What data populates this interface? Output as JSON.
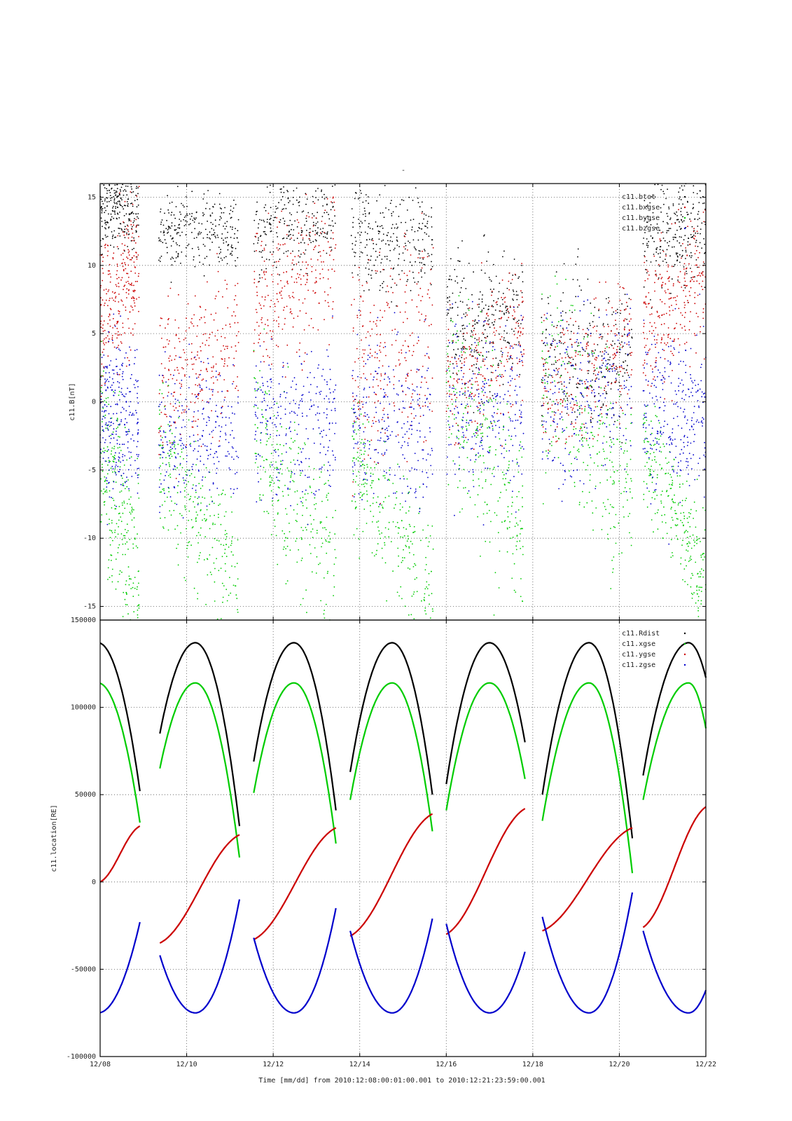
{
  "page": {
    "top_mark": "-",
    "xlabel": "Time [mm/dd]  from 2010:12:08:00:01:00.001  to  2010:12:21:23:59:00.001"
  },
  "chart_data": [
    {
      "type": "scatter",
      "ylabel": "c11.B[nT]",
      "ylim": [
        -16,
        16
      ],
      "xlim": [
        0,
        14
      ],
      "x_unit": "days from 2010-12-08",
      "xtick_labels": [
        "12/08",
        "12/10",
        "12/12",
        "12/14",
        "12/16",
        "12/18",
        "12/20",
        "12/22"
      ],
      "xtick_values": [
        0,
        2,
        4,
        6,
        8,
        10,
        12,
        14
      ],
      "ytick_values": [
        -15,
        -10,
        -5,
        0,
        5,
        10,
        15
      ],
      "ytick_labels": [
        "-15",
        "-10",
        "-5",
        "0",
        "5",
        "10",
        "15"
      ],
      "grid": true,
      "legend_placement": "top-right",
      "series": [
        {
          "name": "c11.btot",
          "color": "#000000",
          "mean": [
            14.2,
            2.8,
            12.5,
            2.5,
            13.5,
            3.5,
            11.8,
            3.5,
            6.0,
            5.0,
            3.5,
            5.0,
            12.8,
            4.2,
            13.5,
            2.6,
            10.5,
            3.0,
            12.0,
            3.0
          ]
        },
        {
          "name": "c11.bxgse",
          "color": "#cc0000",
          "mean": [
            8.0,
            5.0,
            3.0,
            5.5,
            9.0,
            5.0,
            4.0,
            7.0,
            3.0,
            5.0,
            2.5,
            5.0,
            7.5,
            5.0,
            8.0,
            4.0,
            7.0,
            4.0,
            6.5,
            4.0
          ]
        },
        {
          "name": "c11.bygse",
          "color": "#00cc00",
          "mean": [
            -8.0,
            7.0,
            -8.5,
            5.0,
            -7.0,
            6.0,
            -9.0,
            5.0,
            -3.0,
            7.0,
            -2.0,
            7.0,
            -8.0,
            4.0,
            -6.0,
            4.0,
            -9.5,
            4.0,
            -10.0,
            3.5
          ]
        },
        {
          "name": "c11.bzgse",
          "color": "#0000cc",
          "mean": [
            -1.0,
            5.5,
            -2.5,
            4.5,
            -1.5,
            5.0,
            -1.5,
            5.5,
            0.0,
            6.0,
            1.0,
            6.0,
            -1.0,
            5.5,
            -3.0,
            5.0,
            -1.5,
            5.0,
            -2.0,
            4.5
          ]
        }
      ],
      "data_intervals": [
        [
          0.0,
          0.9
        ],
        [
          1.35,
          3.2
        ],
        [
          3.55,
          5.45
        ],
        [
          5.8,
          7.7
        ],
        [
          8.0,
          9.8
        ],
        [
          10.2,
          12.3
        ],
        [
          12.55,
          14.0
        ]
      ]
    },
    {
      "type": "line",
      "ylabel": "c11.location[RE]",
      "ylim": [
        -100000,
        150000
      ],
      "xlim": [
        0,
        14
      ],
      "xtick_labels": [
        "12/08",
        "12/10",
        "12/12",
        "12/14",
        "12/16",
        "12/18",
        "12/20",
        "12/22"
      ],
      "xtick_values": [
        0,
        2,
        4,
        6,
        8,
        10,
        12,
        14
      ],
      "ytick_values": [
        -100000,
        -50000,
        0,
        50000,
        100000,
        150000
      ],
      "ytick_labels": [
        "-100000",
        "-50000",
        "0",
        "50000",
        "100000",
        "150000"
      ],
      "grid": true,
      "legend_placement": "top-right",
      "orbit_period_days": 2.28,
      "apogee_days": [
        -0.05,
        2.2,
        4.48,
        6.75,
        9.0,
        11.3,
        13.6
      ],
      "series": [
        {
          "name": "c11.Rdist",
          "color": "#000000"
        },
        {
          "name": "c11.xgse",
          "color": "#00cc00"
        },
        {
          "name": "c11.ygse",
          "color": "#cc0000"
        },
        {
          "name": "c11.zgse",
          "color": "#0000cc"
        }
      ],
      "segments": [
        {
          "x": [
            0.0,
            0.92
          ],
          "Rdist": [
            136000,
            52000
          ],
          "xgse": [
            114000,
            34000
          ],
          "ygse": [
            0,
            32000
          ],
          "zgse": [
            -75000,
            -23000
          ]
        },
        {
          "x": [
            1.38,
            3.22
          ],
          "Rdist": [
            85000,
            32000
          ],
          "xgse": [
            65000,
            14000
          ],
          "ygse": [
            -35000,
            27000
          ],
          "zgse": [
            -42000,
            -10000
          ]
        },
        {
          "x": [
            3.55,
            5.45
          ],
          "Rdist": [
            69000,
            41000
          ],
          "xgse": [
            51000,
            22000
          ],
          "ygse": [
            -33000,
            31000
          ],
          "zgse": [
            -32000,
            -15000
          ]
        },
        {
          "x": [
            5.78,
            7.68
          ],
          "Rdist": [
            63000,
            50000
          ],
          "xgse": [
            47000,
            29000
          ],
          "ygse": [
            -31000,
            39000
          ],
          "zgse": [
            -28000,
            -21000
          ]
        },
        {
          "x": [
            8.0,
            9.82
          ],
          "Rdist": [
            56000,
            80000
          ],
          "xgse": [
            41000,
            59000
          ],
          "ygse": [
            -30000,
            42000
          ],
          "zgse": [
            -24000,
            -40000
          ]
        },
        {
          "x": [
            10.22,
            12.3
          ],
          "Rdist": [
            50000,
            25000
          ],
          "xgse": [
            35000,
            5000
          ],
          "ygse": [
            -28000,
            31000
          ],
          "zgse": [
            -20000,
            -6000
          ]
        },
        {
          "x": [
            12.55,
            14.0
          ],
          "Rdist": [
            61000,
            117000
          ],
          "xgse": [
            47000,
            88000
          ],
          "ygse": [
            -26000,
            43000
          ],
          "zgse": [
            -28000,
            -62000
          ]
        }
      ]
    }
  ]
}
